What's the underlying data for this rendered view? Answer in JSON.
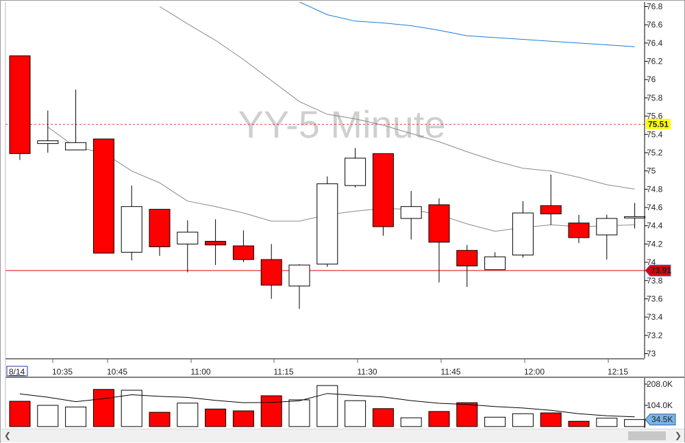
{
  "chart_data": [
    {
      "type": "candlestick",
      "watermark": "YY-5 Minute",
      "date_label": "8/14",
      "x_tick_labels": [
        "10:35",
        "10:45",
        "11:00",
        "11:15",
        "11:30",
        "11:45",
        "12:00",
        "12:15"
      ],
      "ylim": [
        72.9,
        76.85
      ],
      "y_ticks": [
        73,
        73.2,
        73.4,
        73.6,
        73.8,
        74,
        74.2,
        74.4,
        74.6,
        74.8,
        75,
        75.2,
        75.4,
        75.6,
        75.8,
        76,
        76.2,
        76.4,
        76.6,
        76.8
      ],
      "y_tick_labels": [
        "73",
        "73.2",
        "73.4",
        "73.6",
        "73.8",
        "74",
        "74.2",
        "74.4",
        "74.6",
        "74.8",
        "75",
        "75.2",
        "75.4",
        "75.6",
        "75.8",
        "76",
        "76.2",
        "76.4",
        "76.6",
        "76.8"
      ],
      "candles": [
        {
          "open": 76.26,
          "high": 76.26,
          "low": 75.12,
          "close": 75.19,
          "down": true
        },
        {
          "open": 75.3,
          "high": 75.66,
          "low": 75.2,
          "close": 75.33,
          "down": false
        },
        {
          "open": 75.23,
          "high": 75.89,
          "low": 75.23,
          "close": 75.31,
          "down": false
        },
        {
          "open": 75.35,
          "high": 75.35,
          "low": 74.1,
          "close": 74.1,
          "down": true
        },
        {
          "open": 74.11,
          "high": 74.84,
          "low": 74.02,
          "close": 74.61,
          "down": false
        },
        {
          "open": 74.58,
          "high": 74.58,
          "low": 74.07,
          "close": 74.17,
          "down": true
        },
        {
          "open": 74.2,
          "high": 74.46,
          "low": 73.89,
          "close": 74.33,
          "down": false
        },
        {
          "open": 74.23,
          "high": 74.47,
          "low": 73.97,
          "close": 74.19,
          "down": true
        },
        {
          "open": 74.18,
          "high": 74.35,
          "low": 74.0,
          "close": 74.03,
          "down": true
        },
        {
          "open": 74.03,
          "high": 74.2,
          "low": 73.6,
          "close": 73.75,
          "down": true
        },
        {
          "open": 73.74,
          "high": 73.98,
          "low": 73.49,
          "close": 73.97,
          "down": false
        },
        {
          "open": 73.98,
          "high": 74.94,
          "low": 73.95,
          "close": 74.86,
          "down": false
        },
        {
          "open": 74.84,
          "high": 75.25,
          "low": 74.82,
          "close": 75.14,
          "down": false
        },
        {
          "open": 75.19,
          "high": 75.19,
          "low": 74.29,
          "close": 74.39,
          "down": true
        },
        {
          "open": 74.48,
          "high": 74.78,
          "low": 74.25,
          "close": 74.61,
          "down": false
        },
        {
          "open": 74.63,
          "high": 74.7,
          "low": 73.78,
          "close": 74.22,
          "down": true
        },
        {
          "open": 74.13,
          "high": 74.19,
          "low": 73.73,
          "close": 73.96,
          "down": true
        },
        {
          "open": 73.92,
          "high": 74.11,
          "low": 73.92,
          "close": 74.06,
          "down": false
        },
        {
          "open": 74.08,
          "high": 74.67,
          "low": 74.05,
          "close": 74.54,
          "down": false
        },
        {
          "open": 74.62,
          "high": 74.96,
          "low": 74.41,
          "close": 74.53,
          "down": true
        },
        {
          "open": 74.43,
          "high": 74.52,
          "low": 74.21,
          "close": 74.27,
          "down": true
        },
        {
          "open": 74.3,
          "high": 74.52,
          "low": 74.03,
          "close": 74.48,
          "down": false
        },
        {
          "open": 74.49,
          "high": 74.65,
          "low": 74.37,
          "close": 74.5,
          "down": false
        }
      ],
      "ma_series": [
        {
          "color": "#888888",
          "values": [
            null,
            75.48,
            75.26,
            75.2,
            75.0,
            74.87,
            74.67,
            74.61,
            74.54,
            74.45,
            74.45,
            74.52,
            74.56,
            74.59,
            74.58,
            74.52,
            74.42,
            74.34,
            74.38,
            74.41,
            74.39,
            74.4,
            74.41
          ]
        },
        {
          "color": "#888888",
          "values": [
            null,
            null,
            null,
            null,
            null,
            76.8,
            76.61,
            76.43,
            76.22,
            75.99,
            75.76,
            75.62,
            75.57,
            75.5,
            75.41,
            75.32,
            75.21,
            75.11,
            75.03,
            75.0,
            74.93,
            74.85,
            74.8
          ]
        },
        {
          "color": "#1e7bd6",
          "values": [
            null,
            null,
            null,
            null,
            null,
            null,
            null,
            null,
            null,
            null,
            76.85,
            76.71,
            76.64,
            76.62,
            76.59,
            76.54,
            76.48,
            76.46,
            76.44,
            76.42,
            76.4,
            76.38,
            76.36
          ]
        }
      ],
      "reference_lines": [
        {
          "value": 75.51,
          "label": "75.51",
          "color": "#e04040",
          "style": "dotted"
        },
        {
          "value": 73.91,
          "label": "73.91",
          "color": "#dd0000",
          "style": "solid"
        }
      ],
      "grid": false
    },
    {
      "type": "bar",
      "name": "volume",
      "ylim": [
        0,
        208000
      ],
      "y_tick_labels": [
        "208.0K",
        "104.0K"
      ],
      "y_tick_values": [
        208000,
        104000
      ],
      "last_value_label": "34.5K",
      "values": [
        124000,
        104000,
        96000,
        182000,
        178000,
        70000,
        115000,
        86000,
        77000,
        151000,
        131000,
        201000,
        127000,
        88000,
        43000,
        74000,
        117000,
        46000,
        63000,
        67000,
        26000,
        41000,
        34500
      ],
      "down": [
        true,
        false,
        false,
        true,
        false,
        true,
        false,
        true,
        true,
        true,
        false,
        false,
        false,
        true,
        false,
        true,
        true,
        false,
        false,
        true,
        true,
        false,
        false
      ],
      "average": [
        160000,
        144000,
        122000,
        137000,
        156000,
        148000,
        143000,
        128000,
        117000,
        118000,
        126000,
        162000,
        153000,
        145000,
        127000,
        114000,
        108000,
        98000,
        91000,
        80000,
        63000,
        53000,
        48000
      ]
    }
  ],
  "colors": {
    "down": "#ff0000",
    "up": "#ffffff",
    "outline": "#000000",
    "ma_blue": "#1e7bd6",
    "ma_gray": "#888888",
    "ref_dotted": "#e04040",
    "ref_solid": "#dd0000",
    "yellow_tag": "#ffff00",
    "volume_tag": "#7ab4e8"
  },
  "scrollbar": {
    "left_icon": "chevron-left-icon",
    "right_icon": "chevron-right-icon"
  }
}
